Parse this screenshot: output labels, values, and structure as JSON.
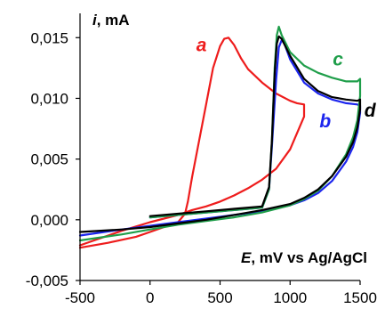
{
  "chart_data": {
    "type": "line",
    "title": "",
    "ylabel": {
      "symbol": "i",
      "unit": ", mA"
    },
    "xlabel": {
      "symbol": "E",
      "unit": ", mV vs Ag/AgCl"
    },
    "xlim": [
      -500,
      1500
    ],
    "ylim": [
      -0.005,
      0.017
    ],
    "x_ticks": [
      -500,
      0,
      500,
      1000,
      1500
    ],
    "x_tick_labels": [
      "-500",
      "0",
      "500",
      "1000",
      "1500"
    ],
    "y_ticks": [
      -0.005,
      0.0,
      0.005,
      0.01,
      0.015
    ],
    "y_tick_labels": [
      "-0,005",
      "0,000",
      "0,005",
      "0,010",
      "0,015"
    ],
    "grid": false,
    "legend": "none",
    "series": [
      {
        "label": "a",
        "color": "#ee1c1c",
        "x": [
          -500,
          -300,
          -100,
          0,
          100,
          150,
          200,
          250,
          270,
          300,
          350,
          400,
          450,
          500,
          530,
          560,
          600,
          650,
          700,
          800,
          900,
          1000,
          1050,
          1100,
          1100,
          1000,
          900,
          800,
          700,
          600,
          500,
          400,
          300,
          200,
          0,
          -200,
          -400,
          -500
        ],
        "y": [
          -0.0023,
          -0.0019,
          -0.0014,
          -0.001,
          -0.0006,
          -0.0004,
          -0.0002,
          0.0005,
          0.0015,
          0.0035,
          0.0065,
          0.0095,
          0.0125,
          0.0143,
          0.0149,
          0.015,
          0.0144,
          0.0133,
          0.0124,
          0.0113,
          0.0104,
          0.0098,
          0.0096,
          0.0095,
          0.0085,
          0.0058,
          0.0042,
          0.0033,
          0.0026,
          0.002,
          0.0015,
          0.0011,
          0.0008,
          0.0004,
          -0.0002,
          -0.0009,
          -0.0017,
          -0.0021
        ]
      },
      {
        "label": "b",
        "color": "#1c25ee",
        "x": [
          0,
          200,
          400,
          600,
          800,
          850,
          870,
          900,
          920,
          940,
          960,
          1000,
          1100,
          1200,
          1300,
          1400,
          1480,
          1500,
          1500,
          1480,
          1450,
          1400,
          1300,
          1200,
          1100,
          1000,
          800,
          600,
          400,
          200,
          0,
          -200,
          -500
        ],
        "y": [
          0.0002,
          0.0004,
          0.0006,
          0.0008,
          0.001,
          0.0025,
          0.006,
          0.0115,
          0.0142,
          0.0148,
          0.0145,
          0.0132,
          0.0113,
          0.0104,
          0.0099,
          0.0096,
          0.0095,
          0.0094,
          0.0088,
          0.0072,
          0.006,
          0.0048,
          0.0032,
          0.0022,
          0.0016,
          0.0012,
          0.0007,
          0.0004,
          0.0001,
          -0.0002,
          -0.0005,
          -0.0008,
          -0.0013
        ]
      },
      {
        "label": "c",
        "color": "#1f9e4a",
        "x": [
          0,
          200,
          400,
          600,
          800,
          850,
          870,
          890,
          905,
          920,
          940,
          1000,
          1100,
          1200,
          1300,
          1400,
          1480,
          1500,
          1500,
          1480,
          1450,
          1400,
          1300,
          1200,
          1100,
          1000,
          800,
          600,
          400,
          200,
          0,
          -200,
          -500
        ],
        "y": [
          0.0002,
          0.0004,
          0.0006,
          0.0008,
          0.001,
          0.0025,
          0.0065,
          0.0125,
          0.0152,
          0.0159,
          0.0152,
          0.0138,
          0.0127,
          0.0121,
          0.0117,
          0.0114,
          0.0114,
          0.0116,
          0.0102,
          0.0082,
          0.0068,
          0.0054,
          0.0036,
          0.0024,
          0.0017,
          0.0012,
          0.0006,
          0.0002,
          -0.0001,
          -0.0004,
          -0.0008,
          -0.0012,
          -0.0017
        ]
      },
      {
        "label": "d",
        "color": "#000000",
        "x": [
          0,
          200,
          400,
          600,
          800,
          850,
          870,
          890,
          905,
          920,
          940,
          1000,
          1100,
          1200,
          1300,
          1400,
          1480,
          1500,
          1500,
          1480,
          1450,
          1400,
          1300,
          1200,
          1100,
          1000,
          800,
          600,
          400,
          200,
          0,
          -200,
          -500
        ],
        "y": [
          0.0003,
          0.0005,
          0.0007,
          0.0009,
          0.0011,
          0.0027,
          0.0065,
          0.012,
          0.0145,
          0.0151,
          0.0149,
          0.0135,
          0.0116,
          0.0106,
          0.0101,
          0.0099,
          0.0098,
          0.0099,
          0.0091,
          0.0076,
          0.0064,
          0.0052,
          0.0036,
          0.0025,
          0.0018,
          0.0013,
          0.0008,
          0.0004,
          0.0,
          -0.0003,
          -0.0006,
          -0.0008,
          -0.001
        ]
      }
    ],
    "annotations": [
      {
        "text": "a",
        "color": "#ee1c1c",
        "x": 330,
        "y": 0.0139
      },
      {
        "text": "b",
        "color": "#1c25ee",
        "x": 1210,
        "y": 0.0076
      },
      {
        "text": "c",
        "color": "#1f9e4a",
        "x": 1305,
        "y": 0.0127
      },
      {
        "text": "d",
        "color": "#000000",
        "x": 1530,
        "y": 0.0085
      }
    ]
  }
}
